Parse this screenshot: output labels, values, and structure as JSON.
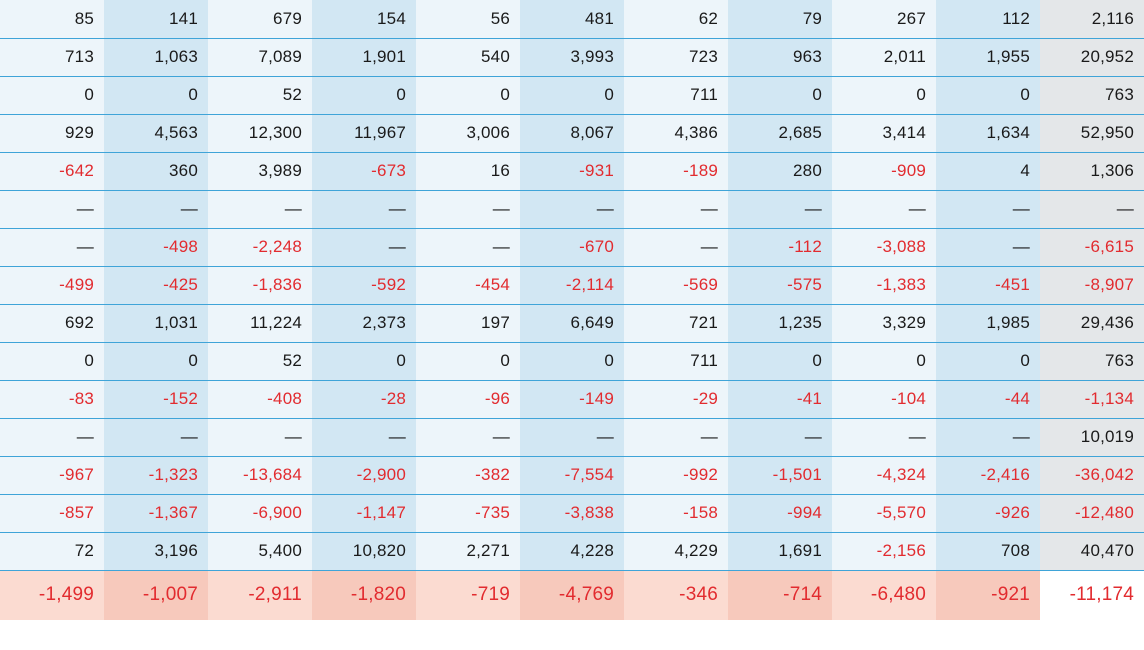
{
  "colors": {
    "border": "#3fa4d8",
    "pale": "#edf5fa",
    "light": "#d2e7f3",
    "totbg": "#e4e7e9",
    "hl_pale": "#fbdbd1",
    "hl_light": "#f7c9bc",
    "neg": "#e22b2f",
    "text": "#1a1a1a"
  },
  "columns": 11,
  "col_shade": [
    "pale",
    "light",
    "pale",
    "light",
    "pale",
    "light",
    "pale",
    "light",
    "pale",
    "light",
    "tot"
  ],
  "rows": [
    {
      "border": true,
      "highlight": false,
      "cells": [
        "85",
        "141",
        "679",
        "154",
        "56",
        "481",
        "62",
        "79",
        "267",
        "112",
        "2,116"
      ]
    },
    {
      "border": true,
      "highlight": false,
      "cells": [
        "713",
        "1,063",
        "7,089",
        "1,901",
        "540",
        "3,993",
        "723",
        "963",
        "2,011",
        "1,955",
        "20,952"
      ]
    },
    {
      "border": true,
      "highlight": false,
      "cells": [
        "0",
        "0",
        "52",
        "0",
        "0",
        "0",
        "711",
        "0",
        "0",
        "0",
        "763"
      ]
    },
    {
      "border": true,
      "highlight": false,
      "cells": [
        "929",
        "4,563",
        "12,300",
        "11,967",
        "3,006",
        "8,067",
        "4,386",
        "2,685",
        "3,414",
        "1,634",
        "52,950"
      ]
    },
    {
      "border": true,
      "highlight": false,
      "cells": [
        "-642",
        "360",
        "3,989",
        "-673",
        "16",
        "-931",
        "-189",
        "280",
        "-909",
        "4",
        "1,306"
      ]
    },
    {
      "border": true,
      "highlight": false,
      "cells": [
        "—",
        "—",
        "—",
        "—",
        "—",
        "—",
        "—",
        "—",
        "—",
        "—",
        "—"
      ]
    },
    {
      "border": true,
      "highlight": false,
      "cells": [
        "—",
        "-498",
        "-2,248",
        "—",
        "—",
        "-670",
        "—",
        "-112",
        "-3,088",
        "—",
        "-6,615"
      ]
    },
    {
      "border": true,
      "highlight": false,
      "cells": [
        "-499",
        "-425",
        "-1,836",
        "-592",
        "-454",
        "-2,114",
        "-569",
        "-575",
        "-1,383",
        "-451",
        "-8,907"
      ]
    },
    {
      "border": true,
      "highlight": false,
      "cells": [
        "692",
        "1,031",
        "11,224",
        "2,373",
        "197",
        "6,649",
        "721",
        "1,235",
        "3,329",
        "1,985",
        "29,436"
      ]
    },
    {
      "border": true,
      "highlight": false,
      "cells": [
        "0",
        "0",
        "52",
        "0",
        "0",
        "0",
        "711",
        "0",
        "0",
        "0",
        "763"
      ]
    },
    {
      "border": true,
      "highlight": false,
      "cells": [
        "-83",
        "-152",
        "-408",
        "-28",
        "-96",
        "-149",
        "-29",
        "-41",
        "-104",
        "-44",
        "-1,134"
      ]
    },
    {
      "border": true,
      "highlight": false,
      "cells": [
        "—",
        "—",
        "—",
        "—",
        "—",
        "—",
        "—",
        "—",
        "—",
        "—",
        "10,019"
      ]
    },
    {
      "border": true,
      "highlight": false,
      "cells": [
        "-967",
        "-1,323",
        "-13,684",
        "-2,900",
        "-382",
        "-7,554",
        "-992",
        "-1,501",
        "-4,324",
        "-2,416",
        "-36,042"
      ]
    },
    {
      "border": true,
      "highlight": false,
      "cells": [
        "-857",
        "-1,367",
        "-6,900",
        "-1,147",
        "-735",
        "-3,838",
        "-158",
        "-994",
        "-5,570",
        "-926",
        "-12,480"
      ]
    },
    {
      "border": true,
      "highlight": false,
      "cells": [
        "72",
        "3,196",
        "5,400",
        "10,820",
        "2,271",
        "4,228",
        "4,229",
        "1,691",
        "-2,156",
        "708",
        "40,470"
      ]
    },
    {
      "border": false,
      "highlight": true,
      "cells": [
        "-1,499",
        "-1,007",
        "-2,911",
        "-1,820",
        "-719",
        "-4,769",
        "-346",
        "-714",
        "-6,480",
        "-921",
        "-11,174"
      ]
    }
  ]
}
